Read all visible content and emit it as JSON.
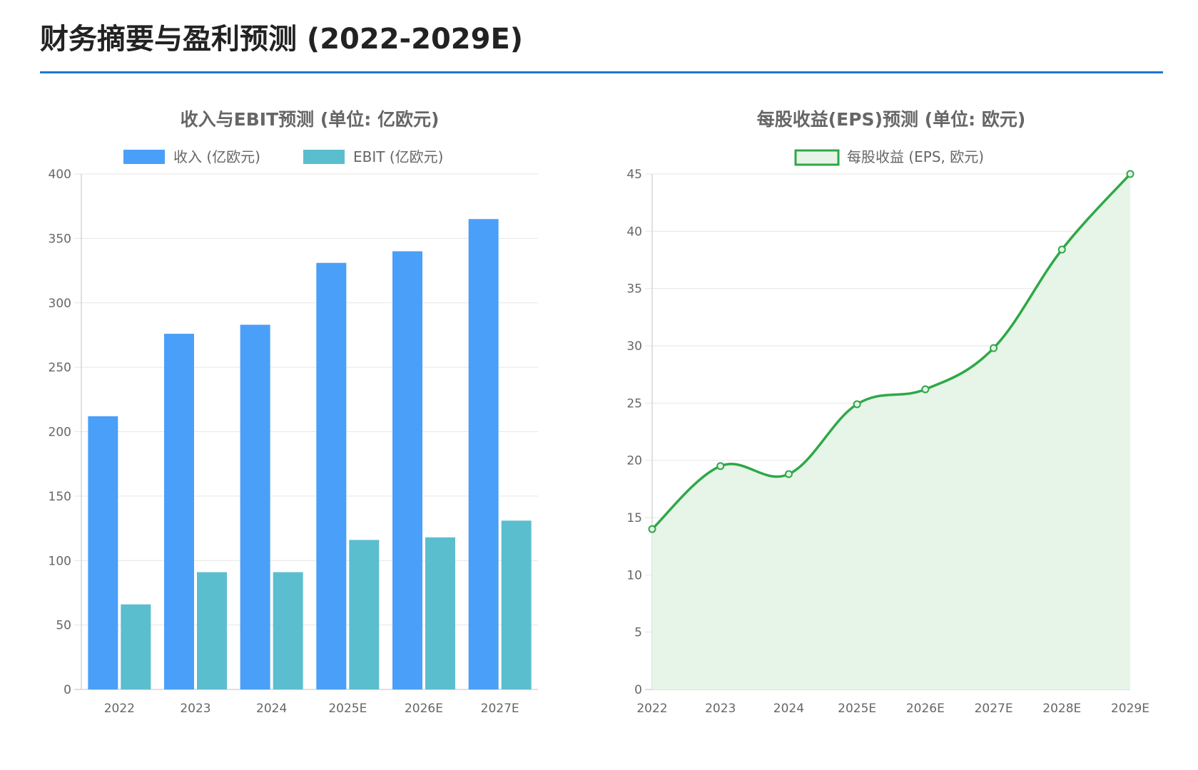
{
  "page": {
    "title": "财务摘要与盈利预测 (2022-2029E)",
    "accent_color": "#1f77d0"
  },
  "chart_data": [
    {
      "type": "bar",
      "title": "收入与EBIT预测 (单位: 亿欧元)",
      "categories": [
        "2022",
        "2023",
        "2024",
        "2025E",
        "2026E",
        "2027E"
      ],
      "series": [
        {
          "name": "收入 (亿欧元)",
          "color": "#4a9ff8",
          "values": [
            212,
            276,
            283,
            331,
            340,
            365
          ]
        },
        {
          "name": "EBIT (亿欧元)",
          "color": "#5bbecf",
          "values": [
            66,
            91,
            91,
            116,
            118,
            131
          ]
        }
      ],
      "ylim": [
        0,
        400
      ],
      "yticks": [
        0,
        50,
        100,
        150,
        200,
        250,
        300,
        350,
        400
      ],
      "legend": "top-center",
      "grid": true
    },
    {
      "type": "area",
      "title": "每股收益(EPS)预测 (单位: 欧元)",
      "categories": [
        "2022",
        "2023",
        "2024",
        "2025E",
        "2026E",
        "2027E",
        "2028E",
        "2029E"
      ],
      "series": [
        {
          "name": "每股收益 (EPS, 欧元)",
          "color": "#2ea847",
          "fill": "#e6f5e8",
          "values": [
            14.0,
            19.5,
            18.8,
            24.9,
            26.2,
            29.8,
            38.4,
            45.0
          ]
        }
      ],
      "ylim": [
        0,
        45
      ],
      "yticks": [
        0,
        5,
        10,
        15,
        20,
        25,
        30,
        35,
        40,
        45
      ],
      "legend": "top-center",
      "grid": true
    }
  ]
}
